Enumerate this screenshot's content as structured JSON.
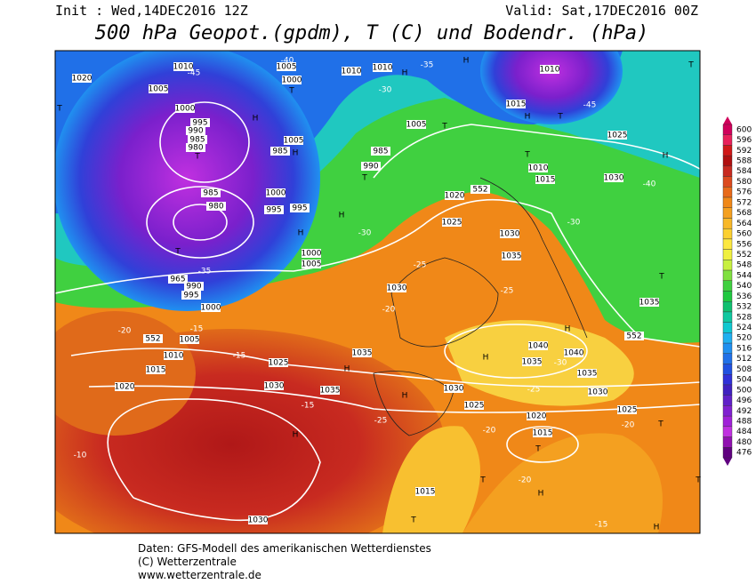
{
  "header": {
    "init": "Init : Wed,14DEC2016 12Z",
    "valid": "Valid: Sat,17DEC2016 00Z",
    "title": "500 hPa Geopot.(gpdm), T (C) und Bodendr. (hPa)"
  },
  "scale": {
    "ticks": [
      600,
      596,
      592,
      588,
      584,
      580,
      576,
      572,
      568,
      564,
      560,
      556,
      552,
      548,
      544,
      540,
      536,
      532,
      528,
      524,
      520,
      516,
      512,
      508,
      504,
      500,
      496,
      492,
      488,
      484,
      480,
      476
    ],
    "colors": [
      "#d0005a",
      "#e8205a",
      "#d01818",
      "#b01010",
      "#c82a20",
      "#dc4a1e",
      "#e86a1a",
      "#f08818",
      "#f4a020",
      "#f8b828",
      "#fcd030",
      "#fce840",
      "#f0f040",
      "#c8f040",
      "#80e040",
      "#40d040",
      "#20c840",
      "#10c070",
      "#10c8a0",
      "#10c8d0",
      "#20b0f0",
      "#2090f0",
      "#2070e8",
      "#2050e0",
      "#3030d8",
      "#4020c0",
      "#6020c8",
      "#8020d0",
      "#a020d8",
      "#c030e0",
      "#9010b0",
      "#600080"
    ]
  },
  "map_labels": [
    "1010",
    "1020",
    "1005",
    "1005",
    "1000",
    "1010",
    "1010",
    "H",
    "H",
    "1010",
    "T",
    "T",
    "1000",
    "995",
    "990",
    "985",
    "980",
    "T",
    "H",
    "T",
    "1005",
    "985",
    "H",
    "1005",
    "T",
    "985",
    "990",
    "T",
    "1015",
    "H",
    "T",
    "1025",
    "T",
    "1010",
    "1015",
    "1030",
    "H",
    "1000",
    "995",
    "995",
    "985",
    "980",
    "T",
    "H",
    "1020",
    "1025",
    "1030",
    "1035",
    "H",
    "1000",
    "1005",
    "965",
    "990",
    "995",
    "1000",
    "T",
    "1030",
    "1035",
    "H",
    "1005",
    "1010",
    "1015",
    "1020",
    "1025",
    "1035",
    "H",
    "1040",
    "1035",
    "1040",
    "H",
    "1035",
    "1030",
    "1035",
    "1030",
    "1030",
    "H",
    "1025",
    "1020",
    "1015",
    "T",
    "H",
    "T",
    "1025",
    "T",
    "H",
    "1015",
    "T",
    "1030",
    "H",
    "T",
    "-10",
    "-45",
    "-40",
    "-35",
    "-30",
    "-45",
    "-40",
    "-30",
    "-30",
    "-25",
    "-20",
    "-35",
    "-25",
    "-30",
    "-25",
    "-25",
    "-20",
    "-20",
    "-15",
    "-20",
    "-15",
    "-15",
    "-15",
    "-20",
    "552",
    "552",
    "552"
  ],
  "footer": [
    "Daten: GFS-Modell des amerikanischen Wetterdienstes",
    "(C) Wetterzentrale",
    "www.wetterzentrale.de"
  ]
}
